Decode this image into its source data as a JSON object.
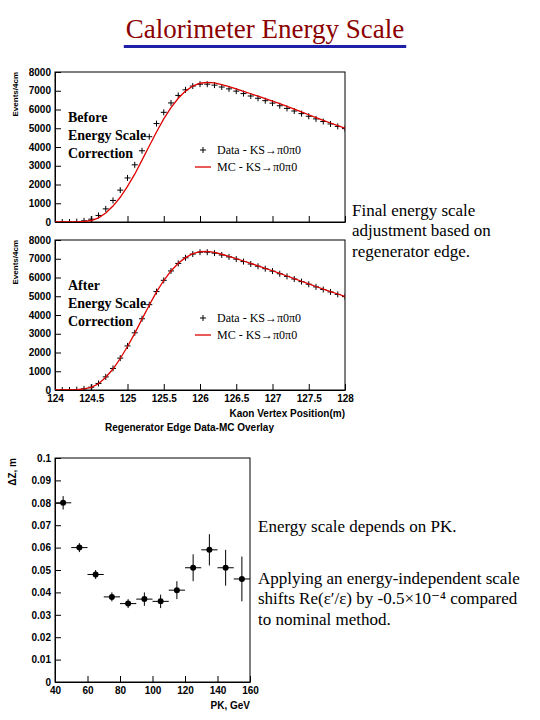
{
  "title": "Calorimeter Energy Scale",
  "notes": [
    "Final energy scale adjustment based on regenerator edge.",
    "Energy scale depends on PK.",
    "Applying an energy-independent scale shifts Re(ε′/ε) by -0.5×10⁻⁴ compared to nominal method."
  ],
  "chart_data": [
    {
      "type": "line",
      "annotation": [
        "Before",
        "Energy Scale",
        "Correction"
      ],
      "ylabel": "Events/4cm",
      "x": [
        124,
        124.1,
        124.2,
        124.3,
        124.4,
        124.5,
        124.6,
        124.7,
        124.8,
        124.9,
        125,
        125.1,
        125.2,
        125.3,
        125.4,
        125.5,
        125.6,
        125.7,
        125.8,
        125.9,
        126,
        126.1,
        126.2,
        126.3,
        126.4,
        126.5,
        126.6,
        126.7,
        126.8,
        126.9,
        127,
        127.1,
        127.2,
        127.3,
        127.4,
        127.5,
        127.6,
        127.7,
        127.8,
        127.9,
        128
      ],
      "xlim": [
        124,
        128
      ],
      "xticks": [
        124,
        124.5,
        125,
        125.5,
        126,
        126.5,
        127,
        127.5,
        128
      ],
      "ylim": [
        0,
        8000
      ],
      "yticks": [
        0,
        1000,
        2000,
        3000,
        4000,
        5000,
        6000,
        7000,
        8000
      ],
      "tick_labels": "y",
      "series": [
        {
          "name": "Data - KS→π0π0",
          "color": "#000000",
          "type": "scatter",
          "marker": "plus",
          "values": [
            0,
            0,
            0,
            20,
            60,
            150,
            350,
            700,
            1150,
            1700,
            2350,
            3050,
            3800,
            4550,
            5250,
            5850,
            6350,
            6750,
            7050,
            7250,
            7350,
            7350,
            7300,
            7200,
            7100,
            6980,
            6850,
            6720,
            6600,
            6470,
            6340,
            6200,
            6060,
            5920,
            5780,
            5640,
            5500,
            5360,
            5230,
            5100,
            4980
          ]
        },
        {
          "name": "MC - KS→π0π0",
          "color": "#dd0000",
          "type": "line",
          "values": [
            0,
            0,
            0,
            10,
            30,
            80,
            220,
            480,
            850,
            1320,
            1900,
            2550,
            3300,
            4050,
            4800,
            5500,
            6100,
            6600,
            6980,
            7250,
            7400,
            7450,
            7420,
            7330,
            7220,
            7100,
            6970,
            6840,
            6710,
            6580,
            6450,
            6310,
            6170,
            6020,
            5870,
            5720,
            5570,
            5420,
            5280,
            5140,
            5000
          ]
        }
      ]
    },
    {
      "type": "line",
      "title": "Regenerator Edge Data-MC Overlay",
      "annotation": [
        "After",
        "Energy Scale",
        "Correction"
      ],
      "xlabel": "Kaon Vertex Position(m)",
      "ylabel": "Events/4cm",
      "x": [
        124,
        124.1,
        124.2,
        124.3,
        124.4,
        124.5,
        124.6,
        124.7,
        124.8,
        124.9,
        125,
        125.1,
        125.2,
        125.3,
        125.4,
        125.5,
        125.6,
        125.7,
        125.8,
        125.9,
        126,
        126.1,
        126.2,
        126.3,
        126.4,
        126.5,
        126.6,
        126.7,
        126.8,
        126.9,
        127,
        127.1,
        127.2,
        127.3,
        127.4,
        127.5,
        127.6,
        127.7,
        127.8,
        127.9,
        128
      ],
      "xlim": [
        124,
        128
      ],
      "xticks": [
        124,
        124.5,
        125,
        125.5,
        126,
        126.5,
        127,
        127.5,
        128
      ],
      "ylim": [
        0,
        8000
      ],
      "yticks": [
        0,
        1000,
        2000,
        3000,
        4000,
        5000,
        6000,
        7000,
        8000
      ],
      "series": [
        {
          "name": "Data - KS→π0π0",
          "color": "#000000",
          "type": "scatter",
          "marker": "plus",
          "values": [
            0,
            0,
            0,
            20,
            60,
            150,
            350,
            700,
            1150,
            1700,
            2350,
            3050,
            3800,
            4550,
            5250,
            5850,
            6350,
            6750,
            7050,
            7250,
            7350,
            7350,
            7300,
            7200,
            7100,
            6980,
            6850,
            6720,
            6600,
            6470,
            6340,
            6200,
            6060,
            5920,
            5780,
            5640,
            5500,
            5360,
            5230,
            5100,
            4980
          ]
        },
        {
          "name": "MC - KS→π0π0",
          "color": "#dd0000",
          "type": "line",
          "values": [
            0,
            0,
            0,
            15,
            55,
            140,
            330,
            680,
            1120,
            1680,
            2320,
            3020,
            3780,
            4520,
            5230,
            5840,
            6350,
            6760,
            7060,
            7270,
            7380,
            7390,
            7340,
            7240,
            7130,
            7010,
            6880,
            6750,
            6620,
            6490,
            6360,
            6220,
            6080,
            5940,
            5800,
            5660,
            5520,
            5380,
            5250,
            5120,
            4990
          ]
        }
      ]
    },
    {
      "type": "scatter",
      "xlabel": "PK, GeV",
      "ylabel": "ΔZ, m",
      "marker": "circle",
      "color": "#000000",
      "x": [
        45,
        55,
        65,
        75,
        85,
        95,
        105,
        115,
        125,
        135,
        145,
        155
      ],
      "values": [
        0.08,
        0.06,
        0.048,
        0.038,
        0.035,
        0.037,
        0.036,
        0.041,
        0.051,
        0.059,
        0.051,
        0.046
      ],
      "errors": [
        0.003,
        0.002,
        0.002,
        0.002,
        0.002,
        0.003,
        0.003,
        0.004,
        0.006,
        0.007,
        0.008,
        0.01
      ],
      "x_errors": [
        5,
        5,
        5,
        5,
        5,
        5,
        5,
        5,
        5,
        5,
        5,
        5
      ],
      "xlim": [
        40,
        160
      ],
      "xticks": [
        40,
        60,
        80,
        100,
        120,
        140,
        160
      ],
      "ylim": [
        0,
        0.1
      ],
      "yticks": [
        0,
        0.01,
        0.02,
        0.03,
        0.04,
        0.05,
        0.06,
        0.07,
        0.08,
        0.09,
        0.1
      ]
    }
  ]
}
